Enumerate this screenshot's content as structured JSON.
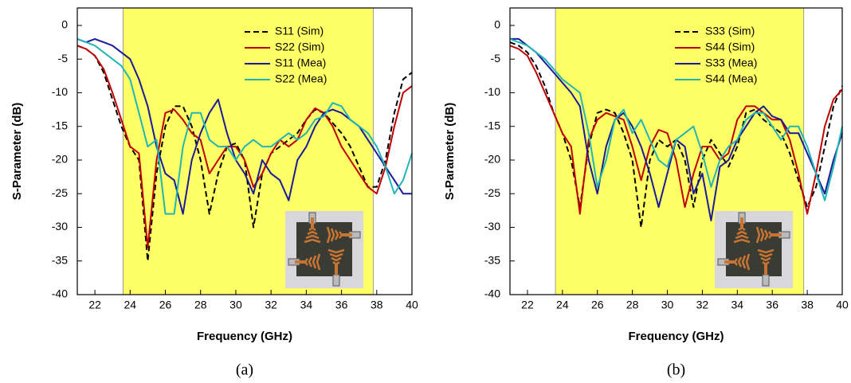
{
  "chart_data": [
    {
      "type": "line",
      "panel_label": "(a)",
      "x_label": "Frequency (GHz)",
      "y_label": "S-Parameter (dB)",
      "xlim": [
        21,
        40
      ],
      "ylim": [
        -40,
        2.6
      ],
      "xticks": [
        22,
        24,
        26,
        28,
        30,
        32,
        34,
        36,
        38,
        40
      ],
      "yticks": [
        0,
        -5,
        -10,
        -15,
        -20,
        -25,
        -30,
        -35,
        -40
      ],
      "shaded_region": [
        23.6,
        37.8
      ],
      "shade_color": "#ffff66",
      "legend": "upper right",
      "x": [
        21,
        21.5,
        22,
        22.5,
        23,
        23.5,
        24,
        24.5,
        25,
        25.5,
        26,
        26.5,
        27,
        27.5,
        28,
        28.5,
        29,
        29.5,
        30,
        30.5,
        31,
        31.5,
        32,
        32.5,
        33,
        33.5,
        34,
        34.5,
        35,
        35.5,
        36,
        36.5,
        37,
        37.5,
        38,
        38.5,
        39,
        39.5,
        40
      ],
      "series": [
        {
          "name": "S11 (Sim)",
          "color": "#000000",
          "dashed": true,
          "values": [
            -3,
            -3.5,
            -4.5,
            -7,
            -11,
            -15,
            -18,
            -20,
            -35,
            -22,
            -15,
            -12,
            -12,
            -15,
            -20,
            -28,
            -22,
            -18,
            -17.5,
            -20,
            -30,
            -22,
            -19,
            -18,
            -17,
            -16,
            -14,
            -12.5,
            -13,
            -14.5,
            -16,
            -18,
            -21,
            -24,
            -24,
            -20,
            -13,
            -8,
            -7
          ]
        },
        {
          "name": "S22 (Sim)",
          "color": "#c00000",
          "dashed": false,
          "values": [
            -3,
            -3.5,
            -4.5,
            -6.5,
            -10,
            -14,
            -18,
            -19,
            -33,
            -20,
            -13,
            -12.5,
            -14,
            -16,
            -17,
            -22,
            -20,
            -18,
            -18,
            -20,
            -24,
            -22,
            -19,
            -17,
            -18,
            -17,
            -14,
            -12.3,
            -13,
            -15,
            -18,
            -20,
            -22,
            -24,
            -25,
            -21,
            -15,
            -10,
            -9
          ]
        },
        {
          "name": "S11 (Mea)",
          "color": "#1a1a9a",
          "dashed": false,
          "values": [
            -2,
            -2.5,
            -2,
            -2.5,
            -3,
            -4,
            -5,
            -8,
            -12,
            -18,
            -22,
            -23,
            -28,
            -20,
            -16,
            -13,
            -11,
            -16,
            -20,
            -22,
            -25,
            -20,
            -22,
            -23,
            -26,
            -20,
            -18,
            -15,
            -13,
            -12.5,
            -13,
            -14,
            -15,
            -17,
            -19,
            -21,
            -23,
            -25,
            -25
          ]
        },
        {
          "name": "S22 (Mea)",
          "color": "#22b5b5",
          "dashed": false,
          "values": [
            -2,
            -2.5,
            -3,
            -4,
            -5,
            -6,
            -8,
            -13,
            -18,
            -17,
            -28,
            -28,
            -18,
            -13,
            -13,
            -17,
            -18,
            -18,
            -20,
            -18,
            -17,
            -18,
            -18,
            -17,
            -16,
            -17,
            -16,
            -14,
            -13.5,
            -11.5,
            -12,
            -14,
            -15,
            -16,
            -18,
            -21,
            -25,
            -23,
            -19
          ]
        }
      ]
    },
    {
      "type": "line",
      "panel_label": "(b)",
      "x_label": "Frequency (GHz)",
      "y_label": "S-Parameter (dB)",
      "xlim": [
        21,
        40
      ],
      "ylim": [
        -40,
        2.6
      ],
      "xticks": [
        22,
        24,
        26,
        28,
        30,
        32,
        34,
        36,
        38,
        40
      ],
      "yticks": [
        0,
        -5,
        -10,
        -15,
        -20,
        -25,
        -30,
        -35,
        -40
      ],
      "shaded_region": [
        23.6,
        37.8
      ],
      "shade_color": "#ffff66",
      "legend": "upper right",
      "x": [
        21,
        21.5,
        22,
        22.5,
        23,
        23.5,
        24,
        24.5,
        25,
        25.5,
        26,
        26.5,
        27,
        27.5,
        28,
        28.5,
        29,
        29.5,
        30,
        30.5,
        31,
        31.5,
        32,
        32.5,
        33,
        33.5,
        34,
        34.5,
        35,
        35.5,
        36,
        36.5,
        37,
        37.5,
        38,
        38.5,
        39,
        39.5,
        40
      ],
      "series": [
        {
          "name": "S33 (Sim)",
          "color": "#000000",
          "dashed": true,
          "values": [
            -2.5,
            -3,
            -4,
            -6,
            -9,
            -13,
            -16,
            -20,
            -27,
            -18,
            -13,
            -12.5,
            -13,
            -16,
            -20,
            -30,
            -20,
            -17,
            -18,
            -17,
            -20,
            -27,
            -20,
            -17,
            -19,
            -21,
            -18,
            -13,
            -12.5,
            -14,
            -15,
            -16,
            -19,
            -23,
            -27,
            -24,
            -18,
            -12,
            -9
          ]
        },
        {
          "name": "S44 (Sim)",
          "color": "#c00000",
          "dashed": false,
          "values": [
            -3,
            -3.5,
            -4.5,
            -7,
            -10,
            -13,
            -16,
            -18,
            -28,
            -17,
            -14,
            -13,
            -13.5,
            -14,
            -18,
            -23,
            -18,
            -15.5,
            -16,
            -20,
            -27,
            -22,
            -18,
            -18,
            -20,
            -19,
            -14,
            -12,
            -12,
            -13,
            -14,
            -14,
            -17,
            -22,
            -28,
            -22,
            -15,
            -11,
            -9.5
          ]
        },
        {
          "name": "S33 (Mea)",
          "color": "#1a1a9a",
          "dashed": false,
          "values": [
            -2,
            -2,
            -3,
            -4,
            -5.5,
            -7,
            -8.5,
            -10,
            -12,
            -20,
            -25,
            -18,
            -14,
            -13,
            -15,
            -18,
            -22,
            -27,
            -22,
            -17,
            -18,
            -25,
            -22,
            -29,
            -21,
            -20,
            -17,
            -15,
            -13,
            -12,
            -13.5,
            -14,
            -16,
            -16,
            -19,
            -22,
            -25,
            -20,
            -16
          ]
        },
        {
          "name": "S44 (Mea)",
          "color": "#22b5b5",
          "dashed": false,
          "values": [
            -2,
            -2.5,
            -3,
            -4,
            -5,
            -6.5,
            -8,
            -9,
            -10,
            -16,
            -24,
            -20,
            -14,
            -12.5,
            -16,
            -14,
            -17,
            -20,
            -21,
            -17,
            -16,
            -15,
            -19,
            -24,
            -20,
            -18,
            -17,
            -14,
            -13,
            -13,
            -15,
            -17,
            -15,
            -15,
            -18,
            -22,
            -26,
            -21,
            -15
          ]
        }
      ]
    }
  ]
}
